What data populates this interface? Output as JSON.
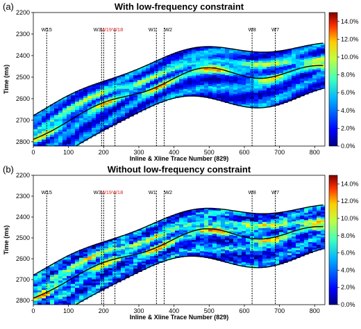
{
  "chart_data": [
    {
      "type": "heatmap",
      "panel_label": "(a)",
      "title": "With low-frequency constraint",
      "xlabel": "Inline & Xline Trace Number (829)",
      "ylabel": "Time (ms)",
      "xlim": [
        0,
        829
      ],
      "ylim": [
        2820,
        2200
      ],
      "xticks": [
        "0",
        "100",
        "200",
        "300",
        "400",
        "500",
        "600",
        "700",
        "800"
      ],
      "yticks": [
        "2200",
        "2300",
        "2400",
        "2500",
        "2600",
        "2700",
        "2800"
      ],
      "colorbar": {
        "range": [
          0,
          15
        ],
        "ticks": [
          "0.0%",
          "2.0%",
          "4.0%",
          "6.0%",
          "8.0%",
          "10.0%",
          "12.0%",
          "14.0%"
        ]
      },
      "wells": [
        {
          "name": "W15",
          "x": 38
        },
        {
          "name": "W3",
          "x": 194
        },
        {
          "name": "W19",
          "x": 200
        },
        {
          "name": "W18",
          "x": 232
        },
        {
          "name": "W1",
          "x": 350
        },
        {
          "name": "W2",
          "x": 372
        },
        {
          "name": "W8",
          "x": 622
        },
        {
          "name": "W7",
          "x": 688
        }
      ]
    },
    {
      "type": "heatmap",
      "panel_label": "(b)",
      "title": "Without low-frequency constraint",
      "xlabel": "Inline & Xline Trace Number (829)",
      "ylabel": "Time (ms)",
      "xlim": [
        0,
        829
      ],
      "ylim": [
        2820,
        2200
      ],
      "xticks": [
        "0",
        "100",
        "200",
        "300",
        "400",
        "500",
        "600",
        "700",
        "800"
      ],
      "yticks": [
        "2200",
        "2300",
        "2400",
        "2500",
        "2600",
        "2700",
        "2800"
      ],
      "colorbar": {
        "range": [
          0,
          15
        ],
        "ticks": [
          "0.0%",
          "2.0%",
          "4.0%",
          "6.0%",
          "8.0%",
          "10.0%",
          "12.0%",
          "14.0%"
        ]
      },
      "wells": [
        {
          "name": "W15",
          "x": 38
        },
        {
          "name": "W3",
          "x": 194
        },
        {
          "name": "W19",
          "x": 200
        },
        {
          "name": "W18",
          "x": 232
        },
        {
          "name": "W1",
          "x": 350
        },
        {
          "name": "W2",
          "x": 372
        },
        {
          "name": "W8",
          "x": 622
        },
        {
          "name": "W7",
          "x": 688
        }
      ]
    }
  ],
  "colors": {
    "well_label": "#000000",
    "well_label_highlight": "#d81e1e",
    "box": "#e02020"
  }
}
